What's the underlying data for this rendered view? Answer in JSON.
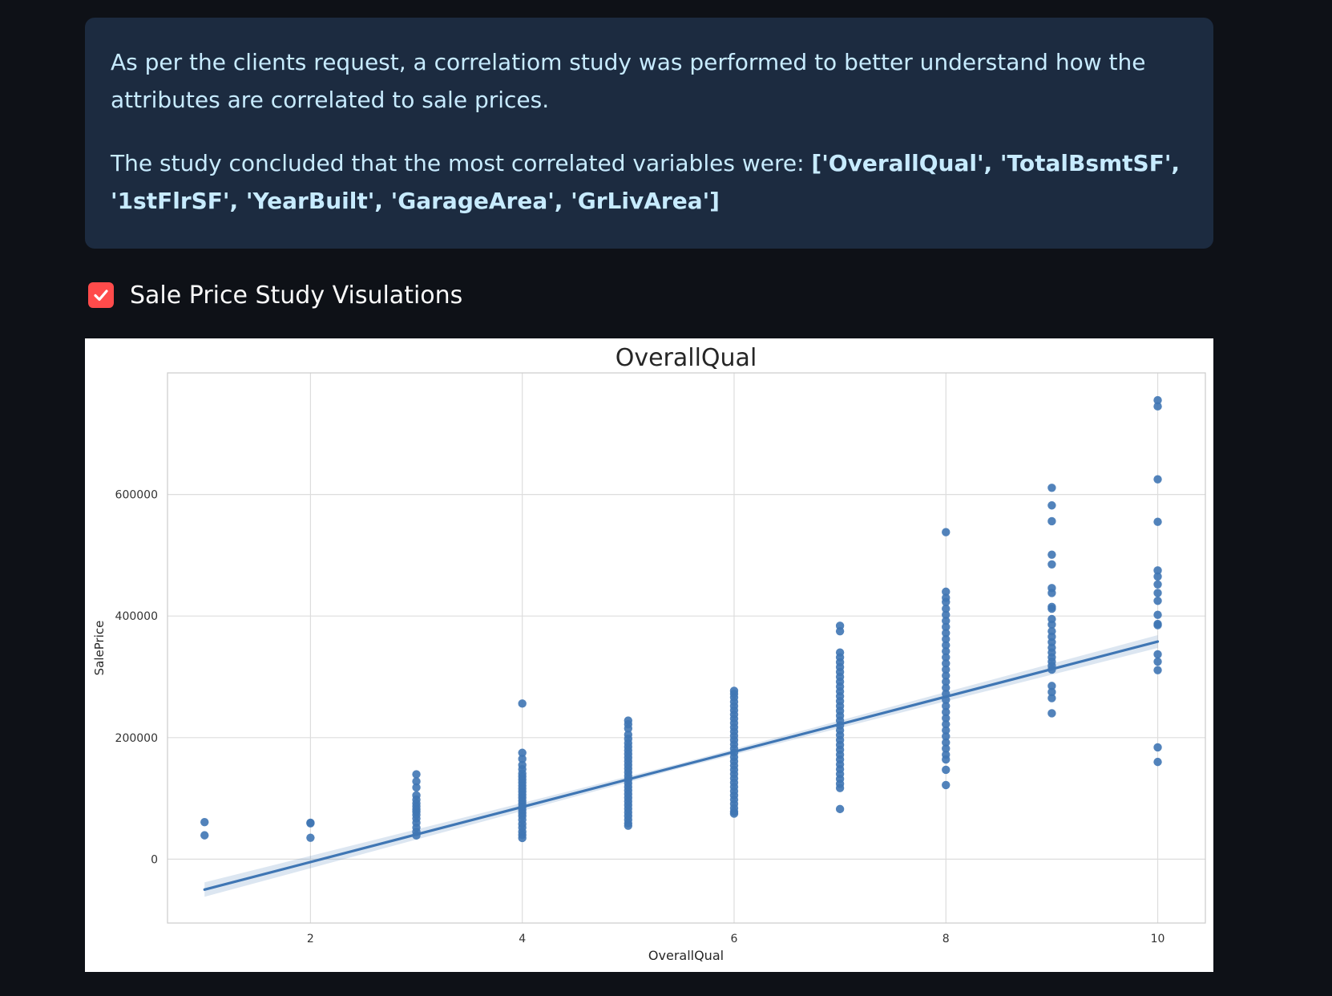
{
  "info": {
    "paragraph1": "As per the clients request, a correlatiom study was performed to better understand how the attributes are correlated to sale prices.",
    "paragraph2_prefix": "The study concluded that the most correlated variables were: ",
    "paragraph2_bold": "['OverallQual', 'TotalBsmtSF', '1stFlrSF', 'YearBuilt', 'GarageArea', 'GrLivArea']"
  },
  "checkbox": {
    "label": "Sale Price Study Visulations",
    "checked": true,
    "color": "#ff4b4b"
  },
  "chart_data": {
    "type": "scatter",
    "title": "OverallQual",
    "xlabel": "OverallQual",
    "ylabel": "SalePrice",
    "xlim": [
      0.65,
      10.45
    ],
    "ylim": [
      -105000,
      800000
    ],
    "xticks": [
      2,
      4,
      6,
      8,
      10
    ],
    "yticks": [
      0,
      200000,
      400000,
      600000
    ],
    "grid": true,
    "point_color": "#3f76b4",
    "regression": {
      "x": [
        1,
        10
      ],
      "y": [
        -50000,
        358000
      ]
    },
    "points": [
      [
        1,
        61000
      ],
      [
        1,
        39300
      ],
      [
        2,
        60000
      ],
      [
        2,
        59000
      ],
      [
        2,
        35300
      ],
      [
        3,
        139600
      ],
      [
        3,
        128000
      ],
      [
        3,
        118000
      ],
      [
        3,
        105000
      ],
      [
        3,
        98000
      ],
      [
        3,
        92000
      ],
      [
        3,
        87000
      ],
      [
        3,
        82000
      ],
      [
        3,
        78000
      ],
      [
        3,
        73000
      ],
      [
        3,
        67000
      ],
      [
        3,
        60000
      ],
      [
        3,
        52000
      ],
      [
        3,
        45000
      ],
      [
        3,
        39000
      ],
      [
        4,
        256000
      ],
      [
        4,
        175000
      ],
      [
        4,
        165000
      ],
      [
        4,
        155000
      ],
      [
        4,
        148000
      ],
      [
        4,
        141000
      ],
      [
        4,
        136000
      ],
      [
        4,
        131000
      ],
      [
        4,
        126000
      ],
      [
        4,
        121000
      ],
      [
        4,
        116000
      ],
      [
        4,
        111000
      ],
      [
        4,
        106000
      ],
      [
        4,
        101000
      ],
      [
        4,
        96000
      ],
      [
        4,
        91000
      ],
      [
        4,
        86000
      ],
      [
        4,
        81000
      ],
      [
        4,
        76000
      ],
      [
        4,
        71000
      ],
      [
        4,
        65000
      ],
      [
        4,
        58000
      ],
      [
        4,
        52000
      ],
      [
        4,
        45000
      ],
      [
        4,
        40000
      ],
      [
        4,
        34900
      ],
      [
        5,
        228000
      ],
      [
        5,
        222000
      ],
      [
        5,
        215000
      ],
      [
        5,
        205000
      ],
      [
        5,
        198000
      ],
      [
        5,
        191000
      ],
      [
        5,
        185000
      ],
      [
        5,
        179000
      ],
      [
        5,
        173000
      ],
      [
        5,
        167000
      ],
      [
        5,
        161000
      ],
      [
        5,
        155000
      ],
      [
        5,
        149000
      ],
      [
        5,
        143000
      ],
      [
        5,
        137000
      ],
      [
        5,
        131000
      ],
      [
        5,
        125000
      ],
      [
        5,
        119000
      ],
      [
        5,
        113000
      ],
      [
        5,
        107000
      ],
      [
        5,
        101000
      ],
      [
        5,
        95000
      ],
      [
        5,
        89000
      ],
      [
        5,
        83000
      ],
      [
        5,
        77000
      ],
      [
        5,
        71000
      ],
      [
        5,
        65000
      ],
      [
        5,
        59000
      ],
      [
        5,
        55000
      ],
      [
        6,
        277000
      ],
      [
        6,
        272000
      ],
      [
        6,
        266000
      ],
      [
        6,
        259000
      ],
      [
        6,
        252000
      ],
      [
        6,
        245000
      ],
      [
        6,
        238000
      ],
      [
        6,
        231000
      ],
      [
        6,
        224000
      ],
      [
        6,
        217000
      ],
      [
        6,
        210000
      ],
      [
        6,
        203000
      ],
      [
        6,
        196000
      ],
      [
        6,
        189000
      ],
      [
        6,
        182000
      ],
      [
        6,
        175000
      ],
      [
        6,
        168000
      ],
      [
        6,
        161000
      ],
      [
        6,
        154000
      ],
      [
        6,
        147000
      ],
      [
        6,
        140000
      ],
      [
        6,
        133000
      ],
      [
        6,
        126000
      ],
      [
        6,
        119000
      ],
      [
        6,
        112000
      ],
      [
        6,
        105000
      ],
      [
        6,
        98000
      ],
      [
        6,
        91000
      ],
      [
        6,
        84000
      ],
      [
        6,
        78000
      ],
      [
        6,
        75000
      ],
      [
        7,
        384000
      ],
      [
        7,
        375000
      ],
      [
        7,
        340000
      ],
      [
        7,
        332000
      ],
      [
        7,
        324000
      ],
      [
        7,
        316000
      ],
      [
        7,
        308000
      ],
      [
        7,
        300000
      ],
      [
        7,
        292000
      ],
      [
        7,
        284000
      ],
      [
        7,
        276000
      ],
      [
        7,
        268000
      ],
      [
        7,
        260000
      ],
      [
        7,
        252000
      ],
      [
        7,
        244000
      ],
      [
        7,
        236000
      ],
      [
        7,
        228000
      ],
      [
        7,
        220000
      ],
      [
        7,
        212000
      ],
      [
        7,
        204000
      ],
      [
        7,
        196000
      ],
      [
        7,
        188000
      ],
      [
        7,
        180000
      ],
      [
        7,
        172000
      ],
      [
        7,
        164000
      ],
      [
        7,
        156000
      ],
      [
        7,
        148000
      ],
      [
        7,
        140000
      ],
      [
        7,
        132000
      ],
      [
        7,
        124000
      ],
      [
        7,
        117000
      ],
      [
        7,
        82500
      ],
      [
        8,
        538000
      ],
      [
        8,
        440000
      ],
      [
        8,
        430000
      ],
      [
        8,
        423000
      ],
      [
        8,
        412000
      ],
      [
        8,
        402000
      ],
      [
        8,
        392000
      ],
      [
        8,
        382000
      ],
      [
        8,
        372000
      ],
      [
        8,
        362000
      ],
      [
        8,
        352000
      ],
      [
        8,
        342000
      ],
      [
        8,
        332000
      ],
      [
        8,
        322000
      ],
      [
        8,
        312000
      ],
      [
        8,
        302000
      ],
      [
        8,
        292000
      ],
      [
        8,
        282000
      ],
      [
        8,
        272000
      ],
      [
        8,
        262000
      ],
      [
        8,
        252000
      ],
      [
        8,
        242000
      ],
      [
        8,
        232000
      ],
      [
        8,
        222000
      ],
      [
        8,
        212000
      ],
      [
        8,
        202000
      ],
      [
        8,
        192000
      ],
      [
        8,
        182000
      ],
      [
        8,
        172000
      ],
      [
        8,
        164000
      ],
      [
        8,
        147000
      ],
      [
        8,
        122000
      ],
      [
        9,
        611000
      ],
      [
        9,
        582000
      ],
      [
        9,
        556000
      ],
      [
        9,
        501000
      ],
      [
        9,
        485000
      ],
      [
        9,
        446000
      ],
      [
        9,
        438000
      ],
      [
        9,
        415000
      ],
      [
        9,
        412000
      ],
      [
        9,
        395000
      ],
      [
        9,
        386000
      ],
      [
        9,
        375000
      ],
      [
        9,
        366000
      ],
      [
        9,
        357000
      ],
      [
        9,
        348000
      ],
      [
        9,
        340000
      ],
      [
        9,
        332000
      ],
      [
        9,
        325000
      ],
      [
        9,
        318000
      ],
      [
        9,
        312000
      ],
      [
        9,
        285000
      ],
      [
        9,
        275000
      ],
      [
        9,
        265000
      ],
      [
        9,
        240000
      ],
      [
        10,
        755000
      ],
      [
        10,
        745000
      ],
      [
        10,
        625000
      ],
      [
        10,
        555000
      ],
      [
        10,
        475000
      ],
      [
        10,
        465000
      ],
      [
        10,
        452000
      ],
      [
        10,
        438000
      ],
      [
        10,
        425000
      ],
      [
        10,
        402000
      ],
      [
        10,
        387000
      ],
      [
        10,
        385000
      ],
      [
        10,
        337000
      ],
      [
        10,
        325000
      ],
      [
        10,
        311000
      ],
      [
        10,
        184000
      ],
      [
        10,
        160000
      ]
    ]
  }
}
